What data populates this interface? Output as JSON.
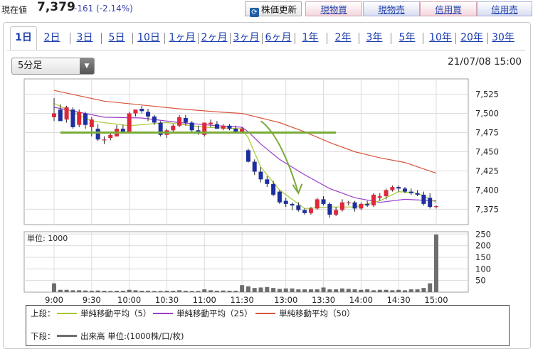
{
  "header": {
    "current_label": "現在値",
    "price": "7,379",
    "change": "-161 (-2.14%)",
    "refresh_label": "株価更新",
    "buttons": [
      "現物買",
      "現物売",
      "信用買",
      "信用売"
    ]
  },
  "tabs": [
    "1日",
    "2日",
    "3日",
    "5日",
    "10日",
    "1ヶ月",
    "2ヶ月",
    "3ヶ月",
    "6ヶ月",
    "1年",
    "2年",
    "3年",
    "5年",
    "10年",
    "20年",
    "30年"
  ],
  "active_tab": "1日",
  "interval_select": {
    "value": "5分足"
  },
  "timestamp": "21/07/08 15:00",
  "colors": {
    "up": "#e0283a",
    "down": "#1d2f9e",
    "ma5": "#a6c832",
    "ma25": "#9b3ec9",
    "ma50": "#d8553c",
    "hline": "#7aab3a",
    "arrow": "#7aab3a",
    "volume": "#6e6e6e"
  },
  "legend": {
    "upper_label": "上段：",
    "lower_label": "下段：",
    "ma5": "単純移動平均（5）",
    "ma25": "単純移動平均（25）",
    "ma50": "単純移動平均（50）",
    "volume": "出来高 単位:(1000株/口/枚)"
  },
  "chart_data": [
    {
      "type": "candlestick",
      "title": "",
      "x_ticks": [
        "9:00",
        "9:30",
        "10:00",
        "10:30",
        "11:00",
        "11:30",
        "13:00",
        "13:30",
        "14:00",
        "14:30",
        "15:00"
      ],
      "y_ticks": [
        "7,375",
        "7,400",
        "7,425",
        "7,450",
        "7,475",
        "7,500",
        "7,525"
      ],
      "ylim": [
        7355,
        7545
      ],
      "grid": true,
      "candles": [
        {
          "t": "9:00",
          "o": 7495,
          "h": 7520,
          "l": 7490,
          "c": 7500
        },
        {
          "t": "9:05",
          "o": 7505,
          "h": 7512,
          "l": 7490,
          "c": 7490
        },
        {
          "t": "9:10",
          "o": 7492,
          "h": 7510,
          "l": 7488,
          "c": 7508
        },
        {
          "t": "9:15",
          "o": 7505,
          "h": 7508,
          "l": 7480,
          "c": 7482
        },
        {
          "t": "9:20",
          "o": 7485,
          "h": 7505,
          "l": 7482,
          "c": 7502
        },
        {
          "t": "9:25",
          "o": 7500,
          "h": 7502,
          "l": 7480,
          "c": 7485
        },
        {
          "t": "9:30",
          "o": 7482,
          "h": 7495,
          "l": 7470,
          "c": 7492
        },
        {
          "t": "9:35",
          "o": 7480,
          "h": 7486,
          "l": 7464,
          "c": 7466
        },
        {
          "t": "9:40",
          "o": 7466,
          "h": 7470,
          "l": 7460,
          "c": 7466
        },
        {
          "t": "9:45",
          "o": 7468,
          "h": 7475,
          "l": 7465,
          "c": 7472
        },
        {
          "t": "9:50",
          "o": 7470,
          "h": 7485,
          "l": 7470,
          "c": 7480
        },
        {
          "t": "9:55",
          "o": 7480,
          "h": 7485,
          "l": 7474,
          "c": 7476
        },
        {
          "t": "10:00",
          "o": 7476,
          "h": 7502,
          "l": 7474,
          "c": 7500
        },
        {
          "t": "10:05",
          "o": 7500,
          "h": 7505,
          "l": 7496,
          "c": 7505
        },
        {
          "t": "10:10",
          "o": 7506,
          "h": 7510,
          "l": 7500,
          "c": 7503
        },
        {
          "t": "10:15",
          "o": 7502,
          "h": 7506,
          "l": 7490,
          "c": 7496
        },
        {
          "t": "10:20",
          "o": 7496,
          "h": 7498,
          "l": 7485,
          "c": 7488
        },
        {
          "t": "10:25",
          "o": 7488,
          "h": 7490,
          "l": 7470,
          "c": 7472
        },
        {
          "t": "10:30",
          "o": 7472,
          "h": 7480,
          "l": 7468,
          "c": 7478
        },
        {
          "t": "10:35",
          "o": 7478,
          "h": 7486,
          "l": 7474,
          "c": 7484
        },
        {
          "t": "10:40",
          "o": 7484,
          "h": 7498,
          "l": 7482,
          "c": 7495
        },
        {
          "t": "10:45",
          "o": 7494,
          "h": 7498,
          "l": 7484,
          "c": 7488
        },
        {
          "t": "10:50",
          "o": 7488,
          "h": 7490,
          "l": 7476,
          "c": 7478
        },
        {
          "t": "10:55",
          "o": 7478,
          "h": 7484,
          "l": 7472,
          "c": 7474
        },
        {
          "t": "11:00",
          "o": 7472,
          "h": 7488,
          "l": 7470,
          "c": 7488
        },
        {
          "t": "11:05",
          "o": 7486,
          "h": 7492,
          "l": 7482,
          "c": 7488
        },
        {
          "t": "11:10",
          "o": 7486,
          "h": 7490,
          "l": 7480,
          "c": 7480
        },
        {
          "t": "11:15",
          "o": 7480,
          "h": 7486,
          "l": 7478,
          "c": 7484
        },
        {
          "t": "11:20",
          "o": 7484,
          "h": 7486,
          "l": 7478,
          "c": 7480
        },
        {
          "t": "11:25",
          "o": 7480,
          "h": 7484,
          "l": 7474,
          "c": 7476
        },
        {
          "t": "11:30",
          "o": 7476,
          "h": 7482,
          "l": 7474,
          "c": 7480
        },
        {
          "t": "12:30",
          "o": 7452,
          "h": 7454,
          "l": 7436,
          "c": 7437
        },
        {
          "t": "12:35",
          "o": 7437,
          "h": 7440,
          "l": 7420,
          "c": 7424
        },
        {
          "t": "12:40",
          "o": 7424,
          "h": 7430,
          "l": 7410,
          "c": 7414
        },
        {
          "t": "12:45",
          "o": 7414,
          "h": 7418,
          "l": 7404,
          "c": 7408
        },
        {
          "t": "12:50",
          "o": 7408,
          "h": 7412,
          "l": 7392,
          "c": 7394
        },
        {
          "t": "12:55",
          "o": 7398,
          "h": 7400,
          "l": 7382,
          "c": 7384
        },
        {
          "t": "13:00",
          "o": 7386,
          "h": 7390,
          "l": 7378,
          "c": 7382
        },
        {
          "t": "13:05",
          "o": 7382,
          "h": 7384,
          "l": 7374,
          "c": 7380
        },
        {
          "t": "13:10",
          "o": 7380,
          "h": 7384,
          "l": 7372,
          "c": 7374
        },
        {
          "t": "13:15",
          "o": 7374,
          "h": 7376,
          "l": 7368,
          "c": 7370
        },
        {
          "t": "13:20",
          "o": 7370,
          "h": 7378,
          "l": 7368,
          "c": 7376
        },
        {
          "t": "13:25",
          "o": 7376,
          "h": 7390,
          "l": 7374,
          "c": 7388
        },
        {
          "t": "13:30",
          "o": 7388,
          "h": 7392,
          "l": 7380,
          "c": 7382
        },
        {
          "t": "13:35",
          "o": 7382,
          "h": 7384,
          "l": 7364,
          "c": 7368
        },
        {
          "t": "13:40",
          "o": 7368,
          "h": 7378,
          "l": 7366,
          "c": 7374
        },
        {
          "t": "13:45",
          "o": 7374,
          "h": 7388,
          "l": 7372,
          "c": 7384
        },
        {
          "t": "13:50",
          "o": 7384,
          "h": 7386,
          "l": 7380,
          "c": 7384
        },
        {
          "t": "13:55",
          "o": 7384,
          "h": 7386,
          "l": 7372,
          "c": 7376
        },
        {
          "t": "14:00",
          "o": 7376,
          "h": 7384,
          "l": 7374,
          "c": 7382
        },
        {
          "t": "14:05",
          "o": 7382,
          "h": 7386,
          "l": 7378,
          "c": 7380
        },
        {
          "t": "14:10",
          "o": 7380,
          "h": 7396,
          "l": 7378,
          "c": 7394
        },
        {
          "t": "14:15",
          "o": 7390,
          "h": 7396,
          "l": 7386,
          "c": 7392
        },
        {
          "t": "14:20",
          "o": 7392,
          "h": 7402,
          "l": 7388,
          "c": 7400
        },
        {
          "t": "14:25",
          "o": 7400,
          "h": 7406,
          "l": 7398,
          "c": 7404
        },
        {
          "t": "14:30",
          "o": 7404,
          "h": 7406,
          "l": 7398,
          "c": 7402
        },
        {
          "t": "14:35",
          "o": 7402,
          "h": 7404,
          "l": 7396,
          "c": 7398
        },
        {
          "t": "14:40",
          "o": 7398,
          "h": 7402,
          "l": 7394,
          "c": 7396
        },
        {
          "t": "14:45",
          "o": 7396,
          "h": 7400,
          "l": 7392,
          "c": 7394
        },
        {
          "t": "14:50",
          "o": 7394,
          "h": 7398,
          "l": 7380,
          "c": 7382
        },
        {
          "t": "14:55",
          "o": 7390,
          "h": 7396,
          "l": 7376,
          "c": 7378
        },
        {
          "t": "15:00",
          "o": 7379,
          "h": 7380,
          "l": 7376,
          "c": 7379
        }
      ],
      "horizontal_line": {
        "value": 7475,
        "from": "9:05",
        "to": "13:40"
      },
      "arrow": {
        "from": {
          "t": "12:40",
          "v": 7490
        },
        "to": {
          "t": "13:10",
          "v": 7396
        }
      },
      "ma5": [
        [
          0,
          7513
        ],
        [
          6,
          7490
        ],
        [
          12,
          7484
        ],
        [
          18,
          7488
        ],
        [
          24,
          7482
        ],
        [
          30,
          7480
        ],
        [
          31,
          7468
        ],
        [
          33,
          7430
        ],
        [
          36,
          7400
        ],
        [
          40,
          7376
        ],
        [
          44,
          7378
        ],
        [
          48,
          7378
        ],
        [
          52,
          7386
        ],
        [
          55,
          7398
        ],
        [
          58,
          7396
        ],
        [
          61,
          7384
        ]
      ],
      "ma25": [
        [
          0,
          7508
        ],
        [
          8,
          7495
        ],
        [
          14,
          7494
        ],
        [
          20,
          7488
        ],
        [
          26,
          7484
        ],
        [
          30,
          7482
        ],
        [
          31,
          7476
        ],
        [
          33,
          7460
        ],
        [
          36,
          7440
        ],
        [
          40,
          7420
        ],
        [
          44,
          7402
        ],
        [
          48,
          7390
        ],
        [
          52,
          7384
        ],
        [
          56,
          7388
        ],
        [
          61,
          7386
        ]
      ],
      "ma50": [
        [
          0,
          7530
        ],
        [
          8,
          7516
        ],
        [
          14,
          7511
        ],
        [
          20,
          7506
        ],
        [
          26,
          7502
        ],
        [
          30,
          7500
        ],
        [
          33,
          7494
        ],
        [
          36,
          7488
        ],
        [
          40,
          7476
        ],
        [
          44,
          7462
        ],
        [
          48,
          7450
        ],
        [
          52,
          7442
        ],
        [
          56,
          7436
        ],
        [
          61,
          7422
        ]
      ]
    },
    {
      "type": "bar",
      "title": "",
      "unit_label": "単位: 1000",
      "y_ticks": [
        "50",
        "100",
        "150",
        "200",
        "250"
      ],
      "ylim": [
        0,
        260
      ],
      "values": [
        38,
        10,
        10,
        8,
        8,
        7,
        6,
        7,
        6,
        5,
        6,
        6,
        10,
        8,
        6,
        6,
        5,
        5,
        6,
        6,
        8,
        6,
        5,
        5,
        12,
        8,
        6,
        7,
        6,
        6,
        30,
        25,
        18,
        20,
        22,
        18,
        14,
        16,
        16,
        12,
        12,
        12,
        12,
        20,
        12,
        12,
        16,
        14,
        12,
        10,
        12,
        8,
        10,
        10,
        8,
        10,
        8,
        12,
        12,
        18,
        38,
        248
      ]
    }
  ]
}
